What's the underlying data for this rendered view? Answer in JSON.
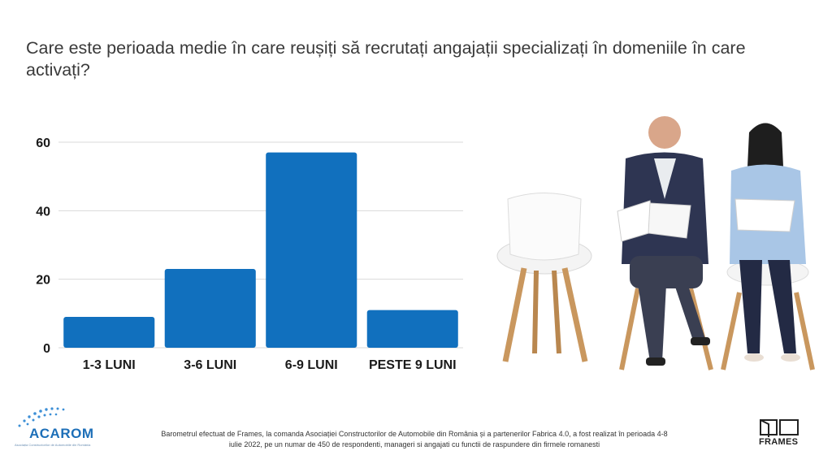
{
  "question": "Care este perioada medie în care reușiți să recrutați angajații specializați în domeniile în care activați?",
  "chart_data": {
    "type": "bar",
    "title": "",
    "categories": [
      "1-3 LUNI",
      "3-6 LUNI",
      "6-9 LUNI",
      "PESTE 9 LUNI"
    ],
    "values": [
      9,
      23,
      57,
      11
    ],
    "yticks": [
      "0",
      "20",
      "40",
      "60"
    ],
    "ylim": [
      0,
      60
    ],
    "grid": true,
    "bar_color": "#1170be"
  },
  "footer": {
    "text": "Barometrul efectuat de  Frames, la comanda Asociației Constructorilor de Automobile din România și a partenerilor Fabrica 4.0, a fost realizat în perioada 4-8 iulie 2022, pe un numar de 450 de respondenti, manageri si angajati cu functii de raspundere din firmele romanesti"
  },
  "logos": {
    "acarom": "ACAROM",
    "acarom_tagline": "Asociația Constructorilor de Automobile din România",
    "frames": "FRAMES"
  },
  "colors": {
    "accent": "#1170be",
    "title": "#3a3a3a"
  }
}
